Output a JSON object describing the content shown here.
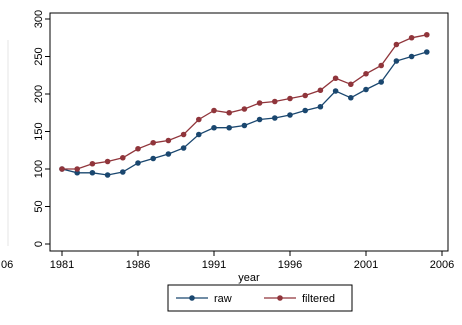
{
  "chart_data": {
    "type": "line",
    "xlabel": "year",
    "ylabel": "",
    "xlim": [
      1981,
      2006
    ],
    "ylim": [
      0,
      300
    ],
    "x_ticks": [
      "1981",
      "1986",
      "1991",
      "1996",
      "2001",
      "2006"
    ],
    "y_ticks": [
      "0",
      "50",
      "100",
      "150",
      "200",
      "250",
      "300"
    ],
    "stray_tick_label": "06",
    "x": [
      1981,
      1982,
      1983,
      1984,
      1985,
      1986,
      1987,
      1988,
      1989,
      1990,
      1991,
      1992,
      1993,
      1994,
      1995,
      1996,
      1997,
      1998,
      1999,
      2000,
      2001,
      2002,
      2003,
      2004,
      2005
    ],
    "series": [
      {
        "name": "raw",
        "color": "#1a476f",
        "values": [
          100,
          95,
          95,
          92,
          96,
          108,
          114,
          120,
          128,
          146,
          155,
          155,
          158,
          166,
          168,
          172,
          178,
          183,
          204,
          195,
          206,
          216,
          244,
          250,
          256
        ]
      },
      {
        "name": "filtered",
        "color": "#90353b",
        "values": [
          100,
          100,
          107,
          110,
          115,
          127,
          135,
          138,
          146,
          166,
          178,
          175,
          180,
          188,
          190,
          194,
          198,
          205,
          221,
          213,
          227,
          238,
          266,
          275,
          279
        ]
      }
    ],
    "legend_position": "bottom",
    "grid": false
  }
}
